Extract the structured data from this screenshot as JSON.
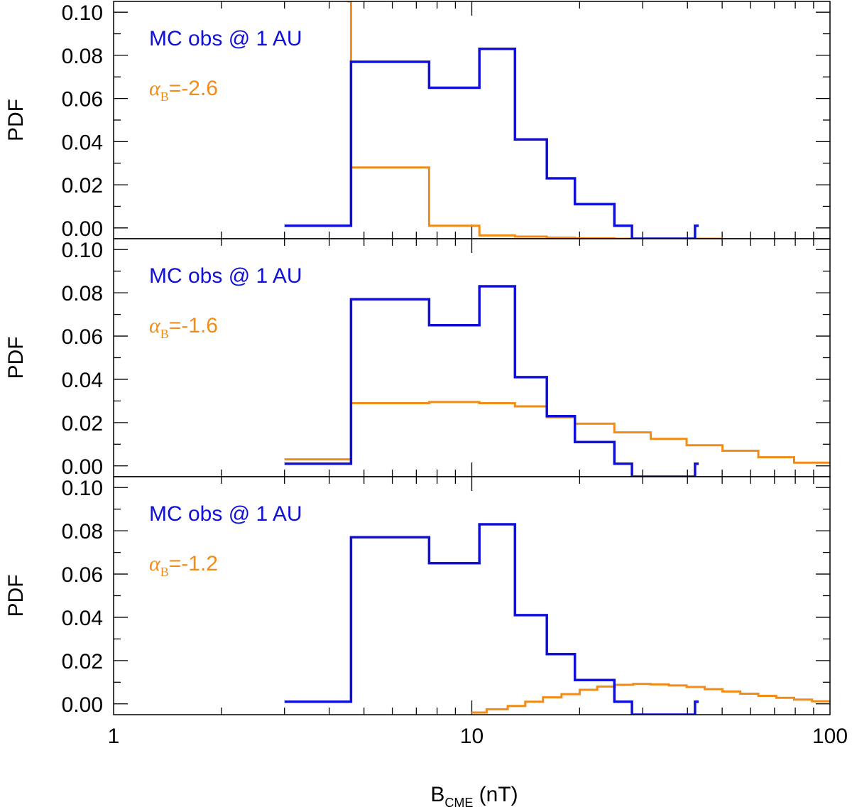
{
  "colors": {
    "observed": "#1010d8",
    "model": "#f28c18",
    "axis": "#000000"
  },
  "x_axis": {
    "label_main": "B",
    "label_sub": "CME",
    "label_unit": " (nT)",
    "tick_labels": [
      "1",
      "10",
      "100"
    ]
  },
  "y_axis_label": "PDF",
  "y_tick_labels": [
    "0.00",
    "0.02",
    "0.04",
    "0.06",
    "0.08",
    "0.10"
  ],
  "chart_data": [
    {
      "type": "line",
      "step": true,
      "x_scale": "log",
      "xlim": [
        1,
        100
      ],
      "ylim": [
        -0.005,
        0.105
      ],
      "ylabel": "PDF",
      "legend": {
        "observed": "MC obs @ 1 AU",
        "alpha_symbol": "α",
        "alpha_sub": "B",
        "alpha_value": "=-2.6"
      },
      "series": [
        {
          "name": "MC obs @ 1 AU",
          "color": "#1010d8",
          "edges": [
            3.0,
            4.6,
            7.6,
            10.5,
            13.2,
            16.2,
            19.4,
            25.0,
            28.0,
            42.0,
            43.0
          ],
          "values": [
            0.001,
            0.077,
            0.065,
            0.083,
            0.041,
            0.023,
            0.011,
            0.001,
            -0.005,
            0.001
          ]
        },
        {
          "name": "α_B=-2.6",
          "color": "#f28c18",
          "edges": [
            4.5,
            4.6,
            7.6,
            10.5,
            13.2,
            16.2,
            19.4,
            25.0,
            50.0
          ],
          "values": [
            0.105,
            0.028,
            0.001,
            -0.0035,
            -0.004,
            -0.0045,
            -0.0048,
            -0.005
          ]
        }
      ]
    },
    {
      "type": "line",
      "step": true,
      "x_scale": "log",
      "xlim": [
        1,
        100
      ],
      "ylim": [
        -0.005,
        0.105
      ],
      "ylabel": "PDF",
      "legend": {
        "observed": "MC obs @ 1 AU",
        "alpha_symbol": "α",
        "alpha_sub": "B",
        "alpha_value": "=-1.6"
      },
      "series": [
        {
          "name": "MC obs @ 1 AU",
          "color": "#1010d8",
          "edges": [
            3.0,
            4.6,
            7.6,
            10.5,
            13.2,
            16.2,
            19.4,
            25.0,
            28.0,
            42.0,
            43.0
          ],
          "values": [
            0.001,
            0.077,
            0.065,
            0.083,
            0.041,
            0.023,
            0.011,
            0.001,
            -0.005,
            0.001
          ]
        },
        {
          "name": "α_B=-1.6",
          "color": "#f28c18",
          "edges": [
            3.0,
            4.6,
            7.6,
            10.5,
            13.2,
            16.2,
            19.4,
            25.0,
            31.6,
            39.8,
            50.1,
            63.1,
            79.4,
            100
          ],
          "values": [
            0.003,
            0.029,
            0.0295,
            0.029,
            0.0275,
            0.0225,
            0.0195,
            0.0155,
            0.0125,
            0.0095,
            0.007,
            0.004,
            0.0015
          ]
        }
      ]
    },
    {
      "type": "line",
      "step": true,
      "x_scale": "log",
      "xlim": [
        1,
        100
      ],
      "ylim": [
        -0.005,
        0.105
      ],
      "ylabel": "PDF",
      "legend": {
        "observed": "MC obs @ 1 AU",
        "alpha_symbol": "α",
        "alpha_sub": "B",
        "alpha_value": "=-1.2"
      },
      "series": [
        {
          "name": "MC obs @ 1 AU",
          "color": "#1010d8",
          "edges": [
            3.0,
            4.6,
            7.6,
            10.5,
            13.2,
            16.2,
            19.4,
            25.0,
            28.0,
            42.0,
            43.0
          ],
          "values": [
            0.001,
            0.077,
            0.065,
            0.083,
            0.041,
            0.023,
            0.011,
            0.001,
            -0.005,
            0.001
          ]
        },
        {
          "name": "α_B=-1.2",
          "color": "#f28c18",
          "edges": [
            10.0,
            11.0,
            12.6,
            14.1,
            15.8,
            17.8,
            20.0,
            22.4,
            25.1,
            28.2,
            31.6,
            35.5,
            39.8,
            44.7,
            50.1,
            56.2,
            63.1,
            70.8,
            79.4,
            89.1,
            100
          ],
          "values": [
            -0.004,
            -0.0025,
            -0.001,
            0.001,
            0.003,
            0.0045,
            0.0065,
            0.008,
            0.0088,
            0.0092,
            0.009,
            0.0085,
            0.0078,
            0.0068,
            0.0057,
            0.0047,
            0.0037,
            0.0028,
            0.002,
            0.0012
          ]
        }
      ]
    }
  ]
}
